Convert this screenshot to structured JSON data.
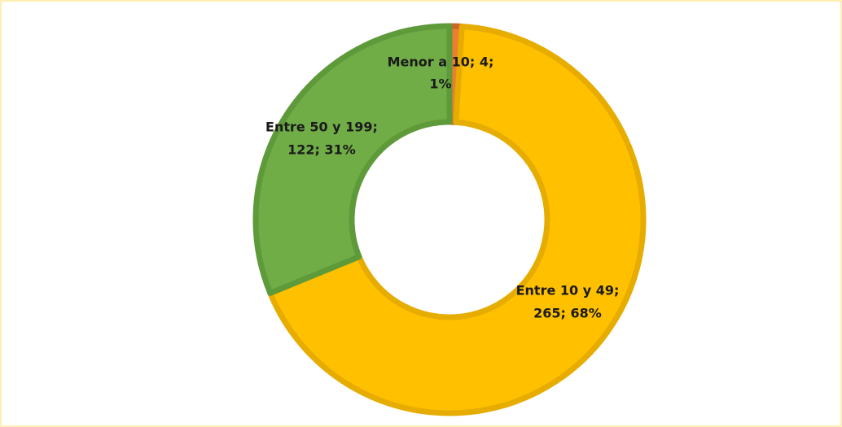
{
  "chart_data": {
    "type": "donut",
    "values": [
      4,
      265,
      122
    ],
    "value_labels": [
      [
        "Menor a 10; 4;",
        "1%"
      ],
      [
        "Entre 10 y 49;",
        "265; 68%"
      ],
      [
        "Entre 50 y 199;",
        "122; 31%"
      ]
    ],
    "colors": [
      "#ed7d31",
      "#ffc000",
      "#70ad47"
    ],
    "edge_colors": [
      "#c9652a",
      "#e6ac00",
      "#5f9a3a"
    ]
  }
}
